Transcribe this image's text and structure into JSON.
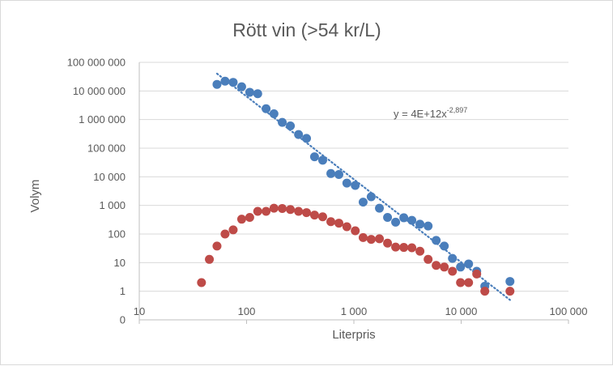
{
  "chart_data": {
    "type": "scatter",
    "title": "Rött vin (>54 kr/L)",
    "xlabel": "Literpris",
    "ylabel": "Volym",
    "x_scale": "log",
    "y_scale": "log",
    "xlim": [
      10,
      100000
    ],
    "ylim": [
      0.1,
      100000000
    ],
    "x_ticks": [
      10,
      100,
      1000,
      10000,
      100000
    ],
    "x_tick_labels": [
      "10",
      "100",
      "1 000",
      "10 000",
      "100 000"
    ],
    "y_ticks": [
      1,
      10,
      100,
      1000,
      10000,
      100000,
      1000000,
      10000000,
      100000000
    ],
    "y_tick_labels": [
      "1",
      "10",
      "100",
      "1 000",
      "10 000",
      "100 000",
      "1 000 000",
      "10 000 000",
      "100 000 000"
    ],
    "y_bottom_label": "0",
    "grid": "horizontal",
    "legend": "none",
    "series": [
      {
        "color": "#4a7ebb",
        "points": [
          [
            53,
            17000000
          ],
          [
            63,
            22000000
          ],
          [
            75,
            20000000
          ],
          [
            90,
            14000000
          ],
          [
            107,
            9000000
          ],
          [
            127,
            8000000
          ],
          [
            152,
            2400000
          ],
          [
            180,
            1600000
          ],
          [
            215,
            800000
          ],
          [
            256,
            600000
          ],
          [
            305,
            300000
          ],
          [
            362,
            220000
          ],
          [
            430,
            50000
          ],
          [
            512,
            38000
          ],
          [
            610,
            13000
          ],
          [
            725,
            12000
          ],
          [
            860,
            6000
          ],
          [
            1030,
            5000
          ],
          [
            1220,
            1300
          ],
          [
            1450,
            2000
          ],
          [
            1730,
            800
          ],
          [
            2060,
            380
          ],
          [
            2450,
            260
          ],
          [
            2920,
            370
          ],
          [
            3470,
            300
          ],
          [
            4130,
            220
          ],
          [
            4920,
            190
          ],
          [
            5850,
            60
          ],
          [
            6960,
            38
          ],
          [
            8290,
            14
          ],
          [
            9860,
            7
          ],
          [
            11730,
            9
          ],
          [
            13960,
            5
          ],
          [
            16610,
            1.5
          ],
          [
            28500,
            2.2
          ]
        ]
      },
      {
        "color": "#be4b48",
        "points": [
          [
            38,
            2
          ],
          [
            45,
            13
          ],
          [
            53,
            38
          ],
          [
            63,
            100
          ],
          [
            75,
            140
          ],
          [
            90,
            330
          ],
          [
            107,
            380
          ],
          [
            127,
            620
          ],
          [
            152,
            620
          ],
          [
            180,
            800
          ],
          [
            215,
            780
          ],
          [
            256,
            720
          ],
          [
            305,
            620
          ],
          [
            362,
            560
          ],
          [
            430,
            460
          ],
          [
            512,
            400
          ],
          [
            610,
            270
          ],
          [
            725,
            240
          ],
          [
            860,
            180
          ],
          [
            1030,
            130
          ],
          [
            1220,
            75
          ],
          [
            1450,
            65
          ],
          [
            1730,
            68
          ],
          [
            2060,
            48
          ],
          [
            2450,
            35
          ],
          [
            2920,
            34
          ],
          [
            3470,
            33
          ],
          [
            4130,
            25
          ],
          [
            4920,
            13
          ],
          [
            5850,
            8
          ],
          [
            6960,
            7
          ],
          [
            8290,
            5
          ],
          [
            9860,
            2
          ],
          [
            11730,
            2
          ],
          [
            13960,
            4
          ],
          [
            16610,
            1
          ],
          [
            28500,
            1
          ]
        ]
      }
    ],
    "trendline": {
      "series_color": "#4a7ebb",
      "type": "power",
      "a": 4000000000000,
      "b": -2.897,
      "x_range": [
        53,
        28500
      ],
      "equation_prefix": "y = 4E+12x",
      "equation_exponent": "-2,897"
    }
  }
}
